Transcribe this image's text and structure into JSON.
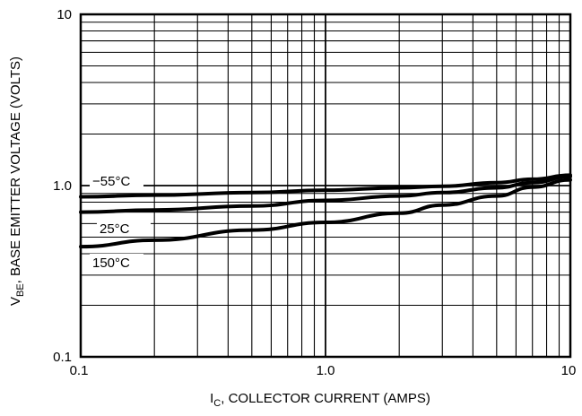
{
  "chart_data": {
    "type": "line",
    "xlabel": {
      "main": "I",
      "sub": "C",
      "rest": ", COLLECTOR CURRENT (AMPS)"
    },
    "ylabel": {
      "main": "V",
      "sub": "BE",
      "rest": ", BASE EMITTER VOLTAGE (VOLTS)"
    },
    "x_scale": "log",
    "y_scale": "log",
    "xlim": [
      0.1,
      10
    ],
    "ylim": [
      0.1,
      10
    ],
    "grid": true,
    "x_ticks": [
      {
        "value": 0.1,
        "label": "0.1"
      },
      {
        "value": 1,
        "label": "1.0"
      },
      {
        "value": 10,
        "label": "10"
      }
    ],
    "y_ticks": [
      {
        "value": 0.1,
        "label": "0.1"
      },
      {
        "value": 1,
        "label": "1.0"
      },
      {
        "value": 10,
        "label": "10"
      }
    ],
    "series": [
      {
        "name": "−55°C",
        "x": [
          0.1,
          0.2,
          0.5,
          1,
          2,
          3,
          5,
          7,
          10
        ],
        "y": [
          0.86,
          0.88,
          0.91,
          0.94,
          0.97,
          0.99,
          1.04,
          1.09,
          1.15
        ]
      },
      {
        "name": "25°C",
        "x": [
          0.1,
          0.2,
          0.5,
          1,
          2,
          3,
          5,
          7,
          10
        ],
        "y": [
          0.7,
          0.72,
          0.76,
          0.82,
          0.87,
          0.91,
          0.97,
          1.04,
          1.13
        ]
      },
      {
        "name": "150°C",
        "x": [
          0.1,
          0.2,
          0.5,
          1,
          2,
          3,
          5,
          7,
          10
        ],
        "y": [
          0.44,
          0.48,
          0.55,
          0.61,
          0.69,
          0.77,
          0.87,
          0.98,
          1.08
        ]
      }
    ]
  }
}
